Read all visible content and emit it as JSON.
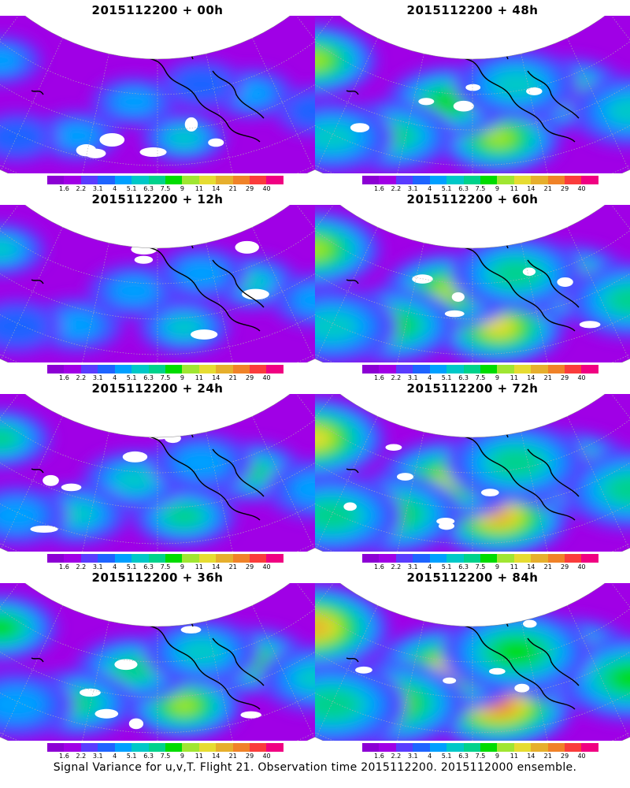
{
  "panels": [
    {
      "title": "2015112200 + 00h",
      "intensity": 0.3
    },
    {
      "title": "2015112200 + 48h",
      "intensity": 0.62
    },
    {
      "title": "2015112200 + 12h",
      "intensity": 0.36
    },
    {
      "title": "2015112200 + 60h",
      "intensity": 0.68
    },
    {
      "title": "2015112200 + 24h",
      "intensity": 0.45
    },
    {
      "title": "2015112200 + 72h",
      "intensity": 0.75
    },
    {
      "title": "2015112200 + 36h",
      "intensity": 0.55
    },
    {
      "title": "2015112200 + 84h",
      "intensity": 0.82
    }
  ],
  "colorbar": {
    "labels": [
      "1.6",
      "2.2",
      "3.1",
      "4",
      "5.1",
      "6.3",
      "7.5",
      "9",
      "11",
      "14",
      "21",
      "29",
      "40"
    ],
    "colors": [
      "#8c00d4",
      "#a000e6",
      "#5a3cff",
      "#1e64ff",
      "#00a0ff",
      "#00c8c8",
      "#00d28c",
      "#00dc00",
      "#a0e632",
      "#e6dc32",
      "#e6af2d",
      "#f08228",
      "#fa3c3c",
      "#f00082"
    ]
  },
  "caption": "Signal Variance for u,v,T. Flight 21. Observation time 2015112200. 2015112000 ensemble."
}
